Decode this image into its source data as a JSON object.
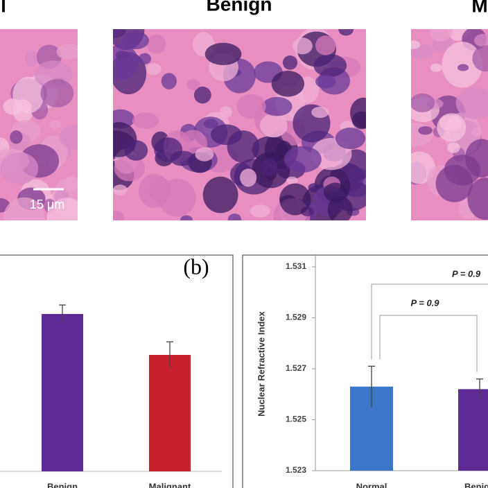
{
  "images": [
    {
      "label": "l"
    },
    {
      "label": "Benign"
    },
    {
      "label": "M"
    }
  ],
  "scale_bar": "15 μm",
  "chart_data": [
    {
      "type": "bar",
      "panel_label": "(b)",
      "categories": [
        "Benign",
        "Malignant"
      ],
      "values": [
        0.757,
        0.56
      ],
      "errors": [
        0.043,
        0.063
      ],
      "colors": [
        "#5e2a95",
        "#c8232c"
      ],
      "ylim": [
        0,
        1
      ]
    },
    {
      "type": "bar",
      "y_label": "Nuclear Refractive Index",
      "categories": [
        "Normal",
        "Benign"
      ],
      "values": [
        1.5263,
        1.5262
      ],
      "errors": [
        0.0008,
        0.0004
      ],
      "colors": [
        "#3b76c8",
        "#5e2a95"
      ],
      "ylim": [
        1.523,
        1.5315
      ],
      "yticks": [
        1.523,
        1.525,
        1.527,
        1.529,
        1.531
      ],
      "annotations": [
        "P = 0.9",
        "P = 0.9"
      ]
    }
  ]
}
